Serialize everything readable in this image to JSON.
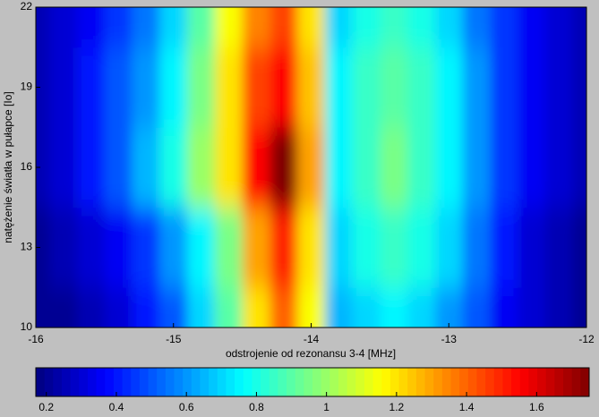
{
  "chart_data": {
    "type": "heatmap",
    "x_label": "odstrojenie od rezonansu 3-4 [MHz]",
    "y_label": "natężenie światła w pułapce [Io]",
    "x": [
      -16,
      -15.8,
      -15.6,
      -15.4,
      -15.2,
      -15,
      -14.8,
      -14.6,
      -14.4,
      -14.2,
      -14,
      -13.8,
      -13.6,
      -13.4,
      -13.2,
      -13,
      -12.8,
      -12.6,
      -12.4,
      -12.2,
      -12
    ],
    "y": [
      10,
      13,
      16,
      19,
      22
    ],
    "z": [
      [
        0.2,
        0.2,
        0.25,
        0.3,
        0.4,
        0.5,
        0.7,
        0.9,
        1.2,
        1.4,
        1.15,
        0.65,
        0.7,
        0.75,
        0.7,
        0.6,
        0.5,
        0.35,
        0.3,
        0.25,
        0.2
      ],
      [
        0.2,
        0.25,
        0.3,
        0.35,
        0.45,
        0.6,
        0.75,
        0.95,
        1.3,
        1.5,
        1.2,
        0.7,
        0.8,
        0.85,
        0.8,
        0.7,
        0.55,
        0.4,
        0.3,
        0.25,
        0.2
      ],
      [
        0.25,
        0.3,
        0.4,
        0.5,
        0.65,
        0.8,
        1.0,
        1.2,
        1.55,
        1.75,
        1.3,
        0.75,
        0.85,
        0.95,
        0.85,
        0.75,
        0.6,
        0.45,
        0.35,
        0.3,
        0.25
      ],
      [
        0.25,
        0.3,
        0.4,
        0.5,
        0.6,
        0.75,
        0.95,
        1.2,
        1.45,
        1.55,
        1.25,
        0.75,
        0.85,
        0.9,
        0.85,
        0.75,
        0.6,
        0.45,
        0.35,
        0.3,
        0.25
      ],
      [
        0.25,
        0.3,
        0.35,
        0.45,
        0.55,
        0.7,
        0.9,
        1.15,
        1.35,
        1.45,
        1.2,
        0.7,
        0.8,
        0.85,
        0.8,
        0.7,
        0.55,
        0.45,
        0.35,
        0.3,
        0.25
      ]
    ],
    "colormap": "jet",
    "clim": [
      0.17,
      1.75
    ],
    "xlim": [
      -16,
      -12
    ],
    "xticks": [
      -16,
      -15,
      -14,
      -13,
      -12
    ],
    "ylim": [
      10,
      22
    ],
    "yticks": [
      10,
      13,
      16,
      19,
      22
    ],
    "colorbar_ticks": [
      0.2,
      0.4,
      0.6,
      0.8,
      1,
      1.2,
      1.4,
      1.6
    ]
  }
}
